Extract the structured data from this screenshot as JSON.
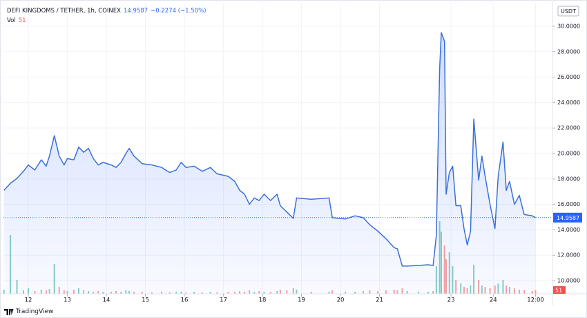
{
  "header": {
    "symbol": "DEFI KINGDOMS / TETHER, 1h, COINEX",
    "price": "14.9587",
    "change": "−0.2274 (−1.50%)",
    "vol_label": "Vol",
    "vol_value": "51"
  },
  "currency": "USDT",
  "brand": "TradingView",
  "chart_data": {
    "type": "line",
    "x": [
      -15,
      -11,
      -7,
      -3,
      0,
      4,
      8,
      11,
      13,
      16,
      19,
      22,
      24,
      28,
      31,
      34,
      37,
      40,
      43,
      46,
      51,
      54,
      57,
      60,
      62,
      65,
      70,
      76,
      82,
      87,
      91,
      94,
      97,
      102,
      107,
      112,
      116,
      123,
      127,
      130,
      133,
      136,
      139,
      142,
      145,
      149,
      153,
      155,
      159,
      163,
      165,
      174,
      185,
      187,
      195,
      201,
      206,
      210,
      215,
      220,
      225,
      227,
      230,
      233,
      240,
      246,
      249,
      251,
      253,
      254,
      256,
      257,
      259,
      261,
      263,
      266,
      268,
      270,
      272,
      274,
      277,
      279,
      281,
      284,
      287,
      289,
      292,
      294,
      296,
      299,
      302,
      305,
      310,
      312
    ],
    "series": [
      {
        "color": "#3a6fd8",
        "values": [
          17.1,
          17.66,
          18.04,
          18.6,
          19.1,
          18.7,
          19.5,
          19.0,
          19.8,
          21.4,
          19.8,
          19.1,
          19.6,
          19.5,
          20.5,
          20.1,
          20.4,
          19.6,
          19.1,
          19.3,
          19.1,
          18.9,
          19.3,
          20.0,
          20.4,
          19.8,
          19.2,
          19.1,
          18.9,
          18.5,
          18.7,
          19.3,
          18.9,
          19.0,
          18.6,
          18.9,
          18.4,
          18.2,
          17.8,
          17.1,
          16.8,
          16.0,
          16.5,
          16.3,
          16.8,
          16.3,
          16.8,
          15.9,
          15.4,
          14.9,
          16.5,
          16.4,
          16.5,
          14.95,
          14.85,
          15.1,
          14.95,
          14.4,
          13.9,
          13.3,
          12.6,
          12.5,
          11.15,
          11.15,
          11.2,
          11.25,
          11.2,
          13.6,
          26.6,
          29.5,
          28.8,
          16.8,
          18.5,
          19.0,
          15.9,
          15.9,
          14.1,
          12.8,
          13.9,
          22.7,
          17.9,
          19.8,
          18.2,
          16.0,
          14.1,
          18.2,
          20.9,
          17.1,
          17.8,
          16.0,
          16.7,
          15.2,
          15.1,
          14.9587
        ]
      }
    ],
    "volume": {
      "values": [
        6,
        85,
        20,
        5,
        8,
        4,
        6,
        5,
        7,
        43,
        10,
        5,
        4,
        6,
        8,
        5,
        4,
        3,
        4,
        3,
        3,
        4,
        3,
        5,
        4,
        3,
        3,
        2,
        3,
        2,
        3,
        3,
        2,
        3,
        2,
        3,
        2,
        3,
        3,
        4,
        3,
        5,
        3,
        4,
        3,
        3,
        4,
        6,
        5,
        8,
        6,
        3,
        3,
        5,
        3,
        3,
        4,
        5,
        4,
        5,
        6,
        5,
        8,
        4,
        3,
        3,
        4,
        40,
        105,
        90,
        70,
        50,
        60,
        40,
        20,
        15,
        10,
        8,
        12,
        42,
        20,
        12,
        10,
        8,
        12,
        15,
        20,
        12,
        10,
        8,
        6,
        5,
        4,
        5
      ],
      "ylim": [
        0,
        110
      ],
      "up_color": "#26a69a",
      "down_color": "#ef5350"
    },
    "xlim": [
      -15.3,
      322.4
    ],
    "xticks": [
      {
        "value": 0,
        "label": "12"
      },
      {
        "value": 24,
        "label": "13"
      },
      {
        "value": 48,
        "label": "14"
      },
      {
        "value": 72,
        "label": "15"
      },
      {
        "value": 96,
        "label": "16"
      },
      {
        "value": 120,
        "label": "17"
      },
      {
        "value": 144,
        "label": "18"
      },
      {
        "value": 168,
        "label": "19"
      },
      {
        "value": 192,
        "label": "20"
      },
      {
        "value": 216,
        "label": "21"
      },
      {
        "value": 260,
        "label": "23"
      },
      {
        "value": 286,
        "label": "24"
      },
      {
        "value": 312,
        "label": "12:00"
      }
    ],
    "ylim": [
      8.97,
      31.79
    ],
    "yticks": [
      {
        "value": 10,
        "label": "10.0000"
      },
      {
        "value": 12,
        "label": "12.0000"
      },
      {
        "value": 14,
        "label": "14.0000"
      },
      {
        "value": 16,
        "label": "16.0000"
      },
      {
        "value": 18,
        "label": "18.0000"
      },
      {
        "value": 20,
        "label": "20.0000"
      },
      {
        "value": 22,
        "label": "22.0000"
      },
      {
        "value": 24,
        "label": "24.0000"
      },
      {
        "value": 26,
        "label": "26.0000"
      },
      {
        "value": 28,
        "label": "28.0000"
      },
      {
        "value": 30,
        "label": "30.0000"
      }
    ],
    "grid": true
  }
}
